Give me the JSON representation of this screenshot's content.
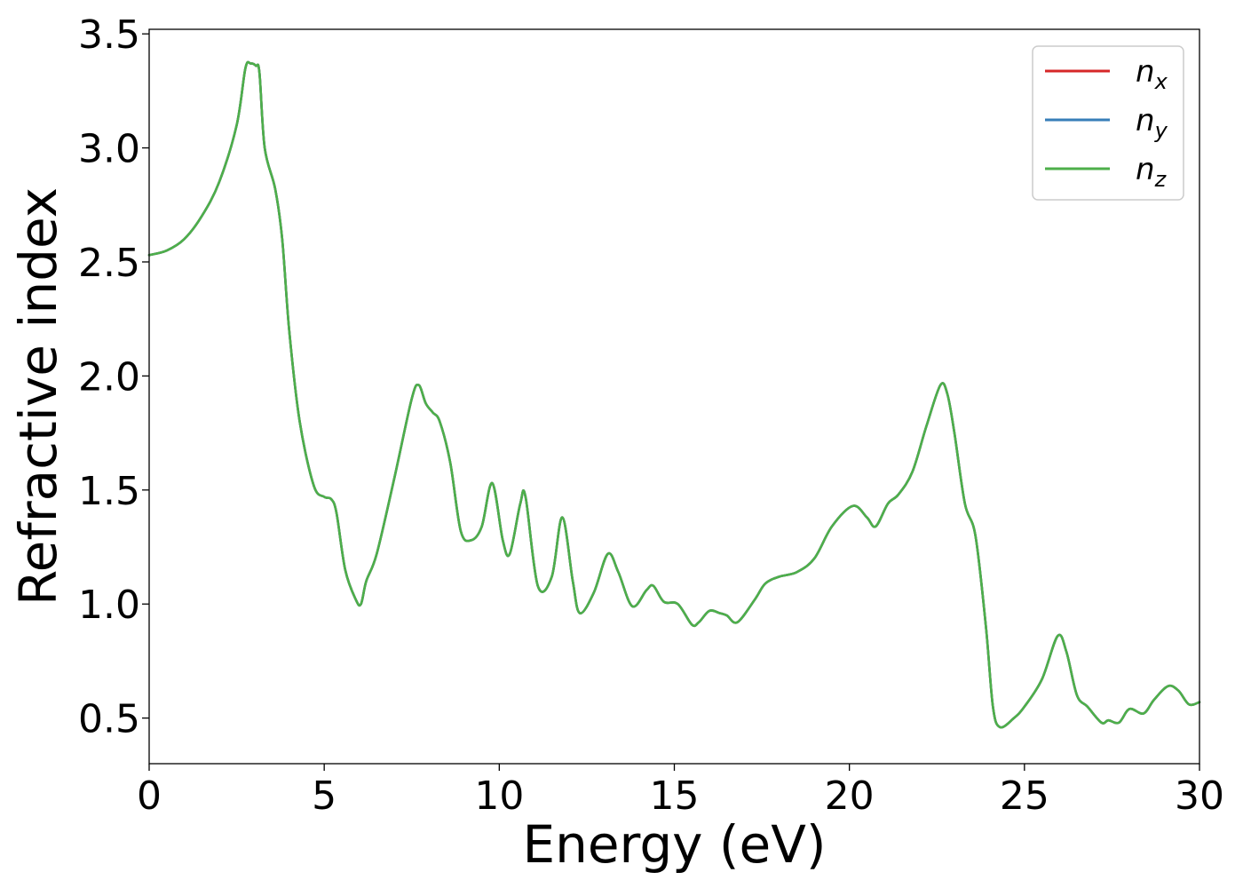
{
  "chart_data": {
    "type": "line",
    "title": "",
    "xlabel": "Energy (eV)",
    "ylabel": "Refractive index",
    "xlim": [
      0,
      30
    ],
    "ylim": [
      0.3,
      3.52
    ],
    "xticks": [
      0,
      5,
      10,
      15,
      20,
      25,
      30
    ],
    "xtick_labels": [
      "0",
      "5",
      "10",
      "15",
      "20",
      "25",
      "30"
    ],
    "yticks": [
      0.5,
      1.0,
      1.5,
      2.0,
      2.5,
      3.0,
      3.5
    ],
    "ytick_labels": [
      "0.5",
      "1.0",
      "1.5",
      "2.0",
      "2.5",
      "3.0",
      "3.5"
    ],
    "grid": false,
    "legend": {
      "placement": "top-right",
      "entries": [
        {
          "base": "n",
          "sub": "x",
          "color": "#d62728"
        },
        {
          "base": "n",
          "sub": "y",
          "color": "#377eb8"
        },
        {
          "base": "n",
          "sub": "z",
          "color": "#4daf4a"
        }
      ]
    },
    "x": [
      0,
      0.5,
      1.0,
      1.5,
      2.0,
      2.5,
      2.75,
      2.9,
      3.05,
      3.15,
      3.3,
      3.6,
      3.8,
      4.0,
      4.3,
      4.7,
      5.0,
      5.2,
      5.35,
      5.6,
      5.9,
      6.05,
      6.2,
      6.5,
      7.0,
      7.5,
      7.7,
      7.9,
      8.1,
      8.3,
      8.6,
      8.9,
      9.2,
      9.5,
      9.8,
      10.1,
      10.3,
      10.6,
      10.75,
      11.1,
      11.5,
      11.8,
      12.1,
      12.3,
      12.7,
      13.1,
      13.4,
      13.8,
      14.2,
      14.4,
      14.7,
      15.1,
      15.5,
      15.7,
      16.0,
      16.3,
      16.5,
      16.8,
      17.3,
      17.6,
      18.0,
      18.5,
      19.0,
      19.5,
      20.1,
      20.5,
      20.75,
      21.1,
      21.4,
      21.8,
      22.2,
      22.6,
      22.8,
      23.0,
      23.3,
      23.6,
      23.9,
      24.1,
      24.3,
      24.7,
      25.0,
      25.5,
      25.95,
      26.2,
      26.5,
      26.8,
      27.2,
      27.4,
      27.7,
      28.0,
      28.4,
      28.7,
      29.1,
      29.4,
      29.7,
      30.0
    ],
    "series": [
      {
        "name": "n_x",
        "color": "#d62728",
        "values": [
          2.53,
          2.55,
          2.6,
          2.7,
          2.85,
          3.1,
          3.35,
          3.37,
          3.36,
          3.33,
          3.0,
          2.82,
          2.6,
          2.2,
          1.8,
          1.52,
          1.47,
          1.46,
          1.4,
          1.15,
          1.02,
          1.0,
          1.1,
          1.22,
          1.55,
          1.9,
          1.96,
          1.88,
          1.84,
          1.8,
          1.62,
          1.32,
          1.28,
          1.34,
          1.53,
          1.28,
          1.22,
          1.44,
          1.47,
          1.08,
          1.12,
          1.38,
          1.1,
          0.96,
          1.05,
          1.22,
          1.14,
          0.99,
          1.06,
          1.08,
          1.01,
          1.0,
          0.91,
          0.92,
          0.97,
          0.96,
          0.95,
          0.92,
          1.02,
          1.09,
          1.12,
          1.14,
          1.2,
          1.34,
          1.43,
          1.38,
          1.34,
          1.44,
          1.48,
          1.58,
          1.78,
          1.96,
          1.92,
          1.75,
          1.44,
          1.3,
          0.9,
          0.55,
          0.46,
          0.5,
          0.55,
          0.67,
          0.86,
          0.79,
          0.6,
          0.55,
          0.48,
          0.49,
          0.48,
          0.54,
          0.52,
          0.58,
          0.64,
          0.62,
          0.56,
          0.57
        ]
      },
      {
        "name": "n_y",
        "color": "#377eb8",
        "values": [
          2.53,
          2.55,
          2.6,
          2.7,
          2.85,
          3.1,
          3.35,
          3.37,
          3.36,
          3.33,
          3.0,
          2.82,
          2.6,
          2.2,
          1.8,
          1.52,
          1.47,
          1.46,
          1.4,
          1.15,
          1.02,
          1.0,
          1.1,
          1.22,
          1.55,
          1.9,
          1.96,
          1.88,
          1.84,
          1.8,
          1.62,
          1.32,
          1.28,
          1.34,
          1.53,
          1.28,
          1.22,
          1.44,
          1.47,
          1.08,
          1.12,
          1.38,
          1.1,
          0.96,
          1.05,
          1.22,
          1.14,
          0.99,
          1.06,
          1.08,
          1.01,
          1.0,
          0.91,
          0.92,
          0.97,
          0.96,
          0.95,
          0.92,
          1.02,
          1.09,
          1.12,
          1.14,
          1.2,
          1.34,
          1.43,
          1.38,
          1.34,
          1.44,
          1.48,
          1.58,
          1.78,
          1.96,
          1.92,
          1.75,
          1.44,
          1.3,
          0.9,
          0.55,
          0.46,
          0.5,
          0.55,
          0.67,
          0.86,
          0.79,
          0.6,
          0.55,
          0.48,
          0.49,
          0.48,
          0.54,
          0.52,
          0.58,
          0.64,
          0.62,
          0.56,
          0.57
        ]
      },
      {
        "name": "n_z",
        "color": "#4daf4a",
        "values": [
          2.53,
          2.55,
          2.6,
          2.7,
          2.85,
          3.1,
          3.35,
          3.37,
          3.36,
          3.33,
          3.0,
          2.82,
          2.6,
          2.2,
          1.8,
          1.52,
          1.47,
          1.46,
          1.4,
          1.15,
          1.02,
          1.0,
          1.1,
          1.22,
          1.55,
          1.9,
          1.96,
          1.88,
          1.84,
          1.8,
          1.62,
          1.32,
          1.28,
          1.34,
          1.53,
          1.28,
          1.22,
          1.44,
          1.47,
          1.08,
          1.12,
          1.38,
          1.1,
          0.96,
          1.05,
          1.22,
          1.14,
          0.99,
          1.06,
          1.08,
          1.01,
          1.0,
          0.91,
          0.92,
          0.97,
          0.96,
          0.95,
          0.92,
          1.02,
          1.09,
          1.12,
          1.14,
          1.2,
          1.34,
          1.43,
          1.38,
          1.34,
          1.44,
          1.48,
          1.58,
          1.78,
          1.96,
          1.92,
          1.75,
          1.44,
          1.3,
          0.9,
          0.55,
          0.46,
          0.5,
          0.55,
          0.67,
          0.86,
          0.79,
          0.6,
          0.55,
          0.48,
          0.49,
          0.48,
          0.54,
          0.52,
          0.58,
          0.64,
          0.62,
          0.56,
          0.57
        ]
      }
    ]
  }
}
